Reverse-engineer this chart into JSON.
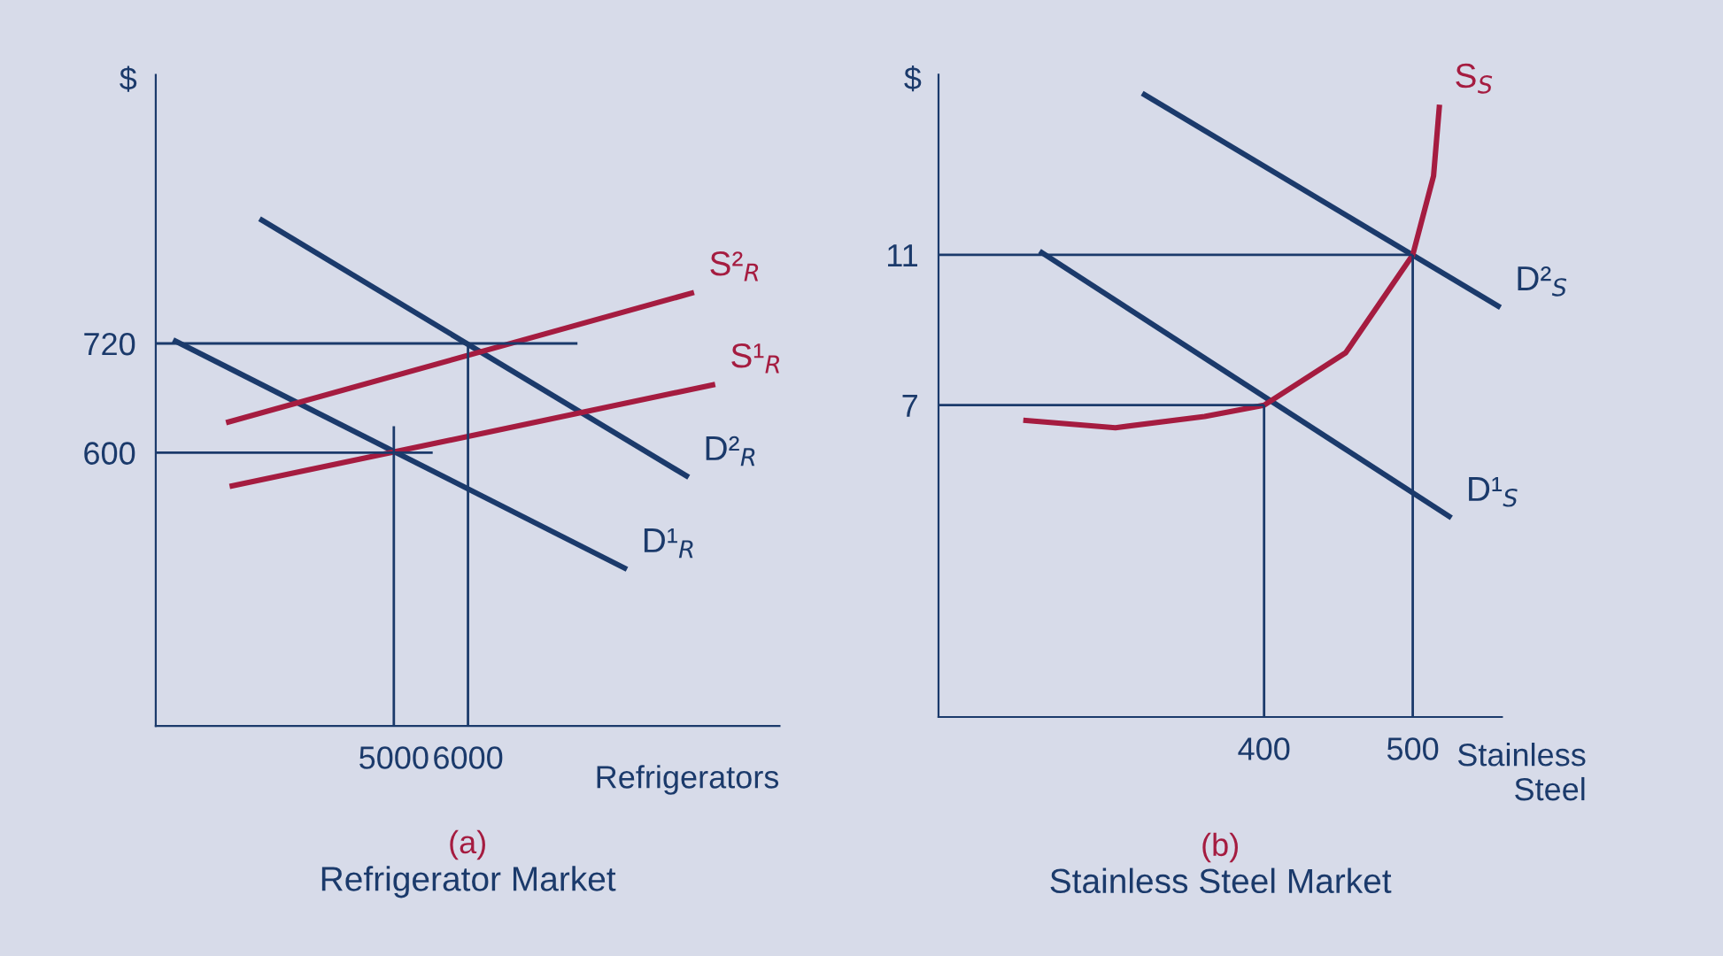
{
  "chart_data": [
    {
      "type": "line",
      "title": "(a)",
      "subtitle": "Refrigerator Market",
      "xlabel": "Refrigerators",
      "ylabel": "$",
      "xlim": [
        1790,
        10200
      ],
      "ylim": [
        300,
        1015
      ],
      "xticks": [
        5000,
        6000
      ],
      "yticks": [
        600,
        720
      ],
      "grid": false,
      "legend": false,
      "marker": "none",
      "series": [
        {
          "name": "D¹$_{R}$",
          "color": "#1b3a6b",
          "x": [
            2024,
            8143
          ],
          "values": [
            724,
            472
          ]
        },
        {
          "name": "D²$_{R}$",
          "color": "#1b3a6b",
          "x": [
            3190,
            8976
          ],
          "values": [
            857,
            573
          ]
        },
        {
          "name": "S¹$_{R}$",
          "color": "#a51c40",
          "x": [
            2786,
            9333
          ],
          "values": [
            563,
            675
          ]
        },
        {
          "name": "S²$_{R}$",
          "color": "#a51c40",
          "x": [
            2738,
            9048
          ],
          "values": [
            633,
            776
          ]
        },
        {
          "color": "#1b3a6b",
          "x": [
            1790,
            7476
          ],
          "values": [
            720,
            720
          ]
        },
        {
          "color": "#1b3a6b",
          "x": [
            1790,
            5524
          ],
          "values": [
            600,
            600
          ]
        },
        {
          "color": "#1b3a6b",
          "x": [
            5000,
            5000
          ],
          "values": [
            300,
            629
          ]
        },
        {
          "color": "#1b3a6b",
          "x": [
            6000,
            6000
          ],
          "values": [
            300,
            720
          ]
        }
      ]
    },
    {
      "type": "line",
      "title": "(b)",
      "subtitle": "Stainless Steel Market",
      "xlabel": "Stainless\nSteel",
      "ylabel": "$",
      "xlim": [
        181,
        560
      ],
      "ylim": [
        -1.3,
        15.8
      ],
      "xticks": [
        400,
        500
      ],
      "yticks": [
        7,
        11
      ],
      "grid": false,
      "legend": false,
      "marker": "none",
      "series": [
        {
          "name": "D¹$_{S}$",
          "color": "#1b3a6b",
          "x": [
            249,
            526
          ],
          "values": [
            11.1,
            4.0
          ]
        },
        {
          "name": "D²$_{S}$",
          "color": "#1b3a6b",
          "x": [
            318,
            559
          ],
          "values": [
            15.3,
            9.6
          ]
        },
        {
          "name": "S$_{S}$",
          "color": "#a51c40",
          "x": [
            238,
            300,
            360,
            400,
            455,
            500,
            514,
            518
          ],
          "values": [
            6.6,
            6.4,
            6.7,
            7,
            8.4,
            11,
            13.1,
            15.0
          ]
        },
        {
          "color": "#1b3a6b",
          "x": [
            181,
            500
          ],
          "values": [
            11,
            11
          ]
        },
        {
          "color": "#1b3a6b",
          "x": [
            500,
            500
          ],
          "values": [
            -1.3,
            11
          ]
        },
        {
          "color": "#1b3a6b",
          "x": [
            181,
            400
          ],
          "values": [
            7,
            7
          ]
        },
        {
          "color": "#1b3a6b",
          "x": [
            400,
            400
          ],
          "values": [
            -1.3,
            7
          ]
        }
      ]
    }
  ]
}
